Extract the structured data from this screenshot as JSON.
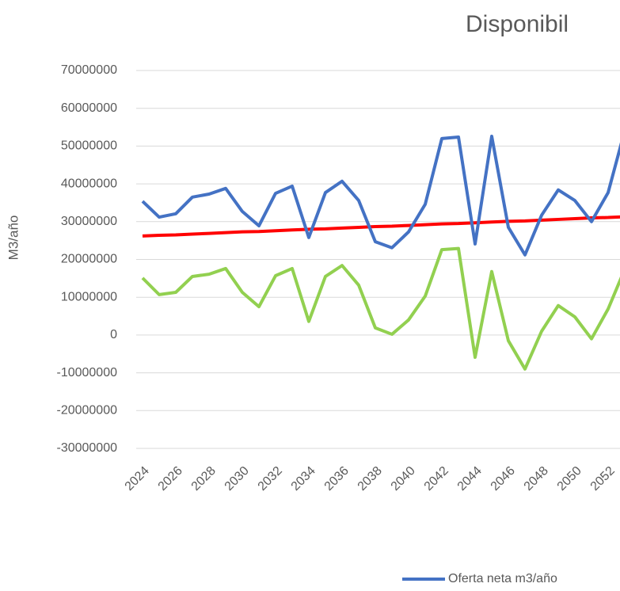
{
  "chart_data": {
    "type": "line",
    "title": "Disponibil",
    "y_label": "M3/año",
    "x": [
      2024,
      2025,
      2026,
      2027,
      2028,
      2029,
      2030,
      2031,
      2032,
      2033,
      2034,
      2035,
      2036,
      2037,
      2038,
      2039,
      2040,
      2041,
      2042,
      2043,
      2044,
      2045,
      2046,
      2047,
      2048,
      2049,
      2050,
      2051,
      2052,
      2053
    ],
    "xticks": [
      2024,
      2026,
      2028,
      2030,
      2032,
      2034,
      2036,
      2038,
      2040,
      2042,
      2044,
      2046,
      2048,
      2050,
      2052
    ],
    "xlim": [
      2024,
      2053
    ],
    "ylim": [
      -30000000,
      70000000
    ],
    "yticks": [
      -30000000,
      -20000000,
      -10000000,
      0,
      10000000,
      20000000,
      30000000,
      40000000,
      50000000,
      60000000,
      70000000
    ],
    "grid": true,
    "series": [
      {
        "name": "Oferta neta m3/año",
        "color": "#4472c4",
        "values": [
          35400000,
          31200000,
          32100000,
          36500000,
          37300000,
          38800000,
          32700000,
          28900000,
          37500000,
          39400000,
          25800000,
          37700000,
          40700000,
          35600000,
          24700000,
          23100000,
          27300000,
          34600000,
          52000000,
          52400000,
          24100000,
          52600000,
          28500000,
          21200000,
          31700000,
          38400000,
          35600000,
          30000000,
          37700000,
          54100000
        ]
      },
      {
        "color": "#ff0000",
        "values": [
          26200000,
          26400000,
          26500000,
          26700000,
          26900000,
          27100000,
          27300000,
          27400000,
          27600000,
          27800000,
          28000000,
          28100000,
          28300000,
          28500000,
          28700000,
          28800000,
          29000000,
          29200000,
          29400000,
          29500000,
          29700000,
          29900000,
          30100000,
          30200000,
          30400000,
          30600000,
          30800000,
          31000000,
          31100000,
          31300000
        ]
      },
      {
        "color": "#92d050",
        "values": [
          15100000,
          10700000,
          11300000,
          15500000,
          16100000,
          17600000,
          11300000,
          7500000,
          15700000,
          17600000,
          3600000,
          15500000,
          18400000,
          13200000,
          1900000,
          200000,
          4000000,
          10300000,
          22600000,
          22900000,
          -5900000,
          16800000,
          -1500000,
          -9000000,
          1000000,
          7800000,
          4800000,
          -1000000,
          6900000,
          17400000
        ]
      }
    ]
  }
}
